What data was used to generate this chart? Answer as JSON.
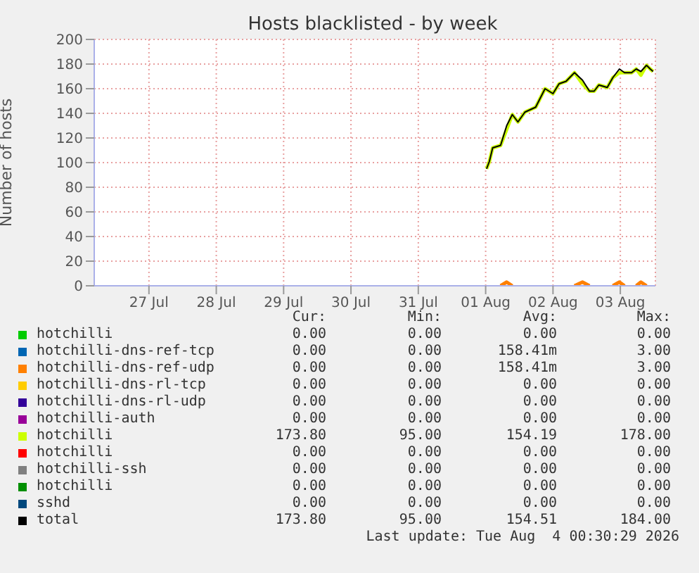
{
  "chart_data": {
    "type": "line",
    "title": "Hosts blacklisted - by week",
    "ylabel": "Number of hosts",
    "x": [
      "2026-08-01T12:20",
      "2026-08-01T13:20",
      "2026-08-01T14:30",
      "2026-08-01T17:20",
      "2026-08-01T19:30",
      "2026-08-01T21:30",
      "2026-08-01T23:30",
      "2026-08-02T02:00",
      "2026-08-02T05:50",
      "2026-08-02T09:10",
      "2026-08-02T12:00",
      "2026-08-02T14:10",
      "2026-08-02T16:40",
      "2026-08-02T19:40",
      "2026-08-02T22:30",
      "2026-08-03T01:00",
      "2026-08-03T02:40",
      "2026-08-03T04:20",
      "2026-08-03T07:20",
      "2026-08-03T09:20",
      "2026-08-03T11:40",
      "2026-08-03T13:30",
      "2026-08-03T16:00",
      "2026-08-03T17:40",
      "2026-08-03T19:20",
      "2026-08-03T21:20",
      "2026-08-03T22:40",
      "2026-08-03T23:40"
    ],
    "xlim": [
      "2026-07-26T16:30",
      "2026-08-04T00:30"
    ],
    "xticks": [
      {
        "value": "2026-07-27T12:00",
        "label": "27 Jul"
      },
      {
        "value": "2026-07-28T12:00",
        "label": "28 Jul"
      },
      {
        "value": "2026-07-29T12:00",
        "label": "29 Jul"
      },
      {
        "value": "2026-07-30T12:00",
        "label": "30 Jul"
      },
      {
        "value": "2026-07-31T12:00",
        "label": "31 Jul"
      },
      {
        "value": "2026-08-01T12:00",
        "label": "01 Aug"
      },
      {
        "value": "2026-08-02T12:00",
        "label": "02 Aug"
      },
      {
        "value": "2026-08-03T12:00",
        "label": "03 Aug"
      }
    ],
    "ylim": [
      0,
      200
    ],
    "yticks": [
      0,
      20,
      40,
      60,
      80,
      100,
      120,
      140,
      160,
      180,
      200
    ],
    "grid": true,
    "legend": "bottom",
    "series": [
      {
        "name": "hotchilli",
        "color": "#00cc00",
        "values": [
          null,
          null,
          null,
          null,
          null,
          null,
          null,
          null,
          null,
          null,
          null,
          null,
          null,
          null,
          null,
          null,
          null,
          null,
          null,
          null,
          null,
          null,
          null,
          null,
          null,
          null,
          null,
          null
        ]
      },
      {
        "name": "hotchilli-dns-ref-tcp",
        "color": "#0066b3",
        "values": [
          null,
          null,
          null,
          null,
          null,
          null,
          null,
          null,
          null,
          null,
          null,
          null,
          null,
          null,
          null,
          null,
          null,
          null,
          null,
          null,
          null,
          null,
          null,
          null,
          null,
          null,
          null,
          null
        ]
      },
      {
        "name": "hotchilli-dns-ref-udp",
        "color": "#ff8000",
        "values": [
          null,
          null,
          null,
          0,
          3,
          0,
          null,
          null,
          null,
          null,
          null,
          null,
          null,
          0,
          3,
          0,
          null,
          null,
          null,
          0,
          3,
          0,
          null,
          0,
          3,
          0,
          null,
          null
        ]
      },
      {
        "name": "hotchilli-dns-rl-tcp",
        "color": "#ffcc00",
        "values": [
          null,
          null,
          null,
          null,
          null,
          null,
          null,
          null,
          null,
          null,
          null,
          null,
          null,
          null,
          null,
          null,
          null,
          null,
          null,
          null,
          null,
          null,
          null,
          null,
          null,
          null,
          null,
          null
        ]
      },
      {
        "name": "hotchilli-dns-rl-udp",
        "color": "#330099",
        "values": [
          null,
          null,
          null,
          null,
          null,
          null,
          null,
          null,
          null,
          null,
          null,
          null,
          null,
          null,
          null,
          null,
          null,
          null,
          null,
          null,
          null,
          null,
          null,
          null,
          null,
          null,
          null,
          null
        ]
      },
      {
        "name": "hotchilli-auth",
        "color": "#990099",
        "values": [
          null,
          null,
          null,
          null,
          null,
          null,
          null,
          null,
          null,
          null,
          null,
          null,
          null,
          null,
          null,
          null,
          null,
          null,
          null,
          null,
          null,
          null,
          null,
          null,
          null,
          null,
          null,
          null
        ]
      },
      {
        "name": "hotchilli",
        "color": "#ccff00",
        "values": [
          95,
          101,
          112,
          114,
          127,
          139,
          133,
          141,
          145,
          160,
          156,
          164,
          166,
          173,
          164,
          158,
          158,
          163,
          161,
          169,
          173,
          173,
          173,
          176,
          171,
          179,
          176,
          174
        ]
      },
      {
        "name": "hotchilli",
        "color": "#ff0000",
        "values": [
          null,
          null,
          null,
          null,
          null,
          null,
          null,
          null,
          null,
          null,
          null,
          null,
          null,
          null,
          null,
          null,
          null,
          null,
          null,
          null,
          null,
          null,
          null,
          null,
          null,
          null,
          null,
          null
        ]
      },
      {
        "name": "hotchilli-ssh",
        "color": "#808080",
        "values": [
          null,
          null,
          null,
          null,
          null,
          null,
          null,
          null,
          null,
          null,
          null,
          null,
          null,
          null,
          null,
          null,
          null,
          null,
          null,
          null,
          null,
          null,
          null,
          null,
          null,
          null,
          null,
          null
        ]
      },
      {
        "name": "hotchilli",
        "color": "#008f00",
        "values": [
          null,
          null,
          null,
          null,
          null,
          null,
          null,
          null,
          null,
          null,
          null,
          null,
          null,
          null,
          null,
          null,
          null,
          null,
          null,
          null,
          null,
          null,
          null,
          null,
          null,
          null,
          null,
          null
        ]
      },
      {
        "name": "sshd",
        "color": "#00487d",
        "values": [
          null,
          null,
          null,
          null,
          null,
          null,
          null,
          null,
          null,
          null,
          null,
          null,
          null,
          null,
          null,
          null,
          null,
          null,
          null,
          null,
          null,
          null,
          null,
          null,
          null,
          null,
          null,
          null
        ]
      },
      {
        "name": "total",
        "color": "#000000",
        "values": [
          95,
          101,
          112,
          114,
          130,
          139,
          133,
          141,
          145,
          160,
          156,
          164,
          166,
          173,
          167,
          158,
          158,
          163,
          161,
          169,
          176,
          173,
          173,
          176,
          174,
          179,
          176,
          174
        ]
      }
    ],
    "annotations": [
      "Cur:",
      "Min:",
      "Avg:",
      "Max:",
      "0.00",
      "0.00",
      "0.00",
      "0.00",
      "0.00",
      "0.00",
      "158.41m",
      "3.00",
      "0.00",
      "0.00",
      "158.41m",
      "3.00",
      "0.00",
      "0.00",
      "0.00",
      "0.00",
      "0.00",
      "0.00",
      "0.00",
      "0.00",
      "0.00",
      "0.00",
      "0.00",
      "0.00",
      "173.80",
      "95.00",
      "154.19",
      "178.00",
      "0.00",
      "0.00",
      "0.00",
      "0.00",
      "0.00",
      "0.00",
      "0.00",
      "0.00",
      "0.00",
      "0.00",
      "0.00",
      "0.00",
      "0.00",
      "0.00",
      "0.00",
      "0.00",
      "173.80",
      "95.00",
      "154.51",
      "184.00",
      "Last update: Tue Aug  4 00:30:29 2026"
    ]
  }
}
